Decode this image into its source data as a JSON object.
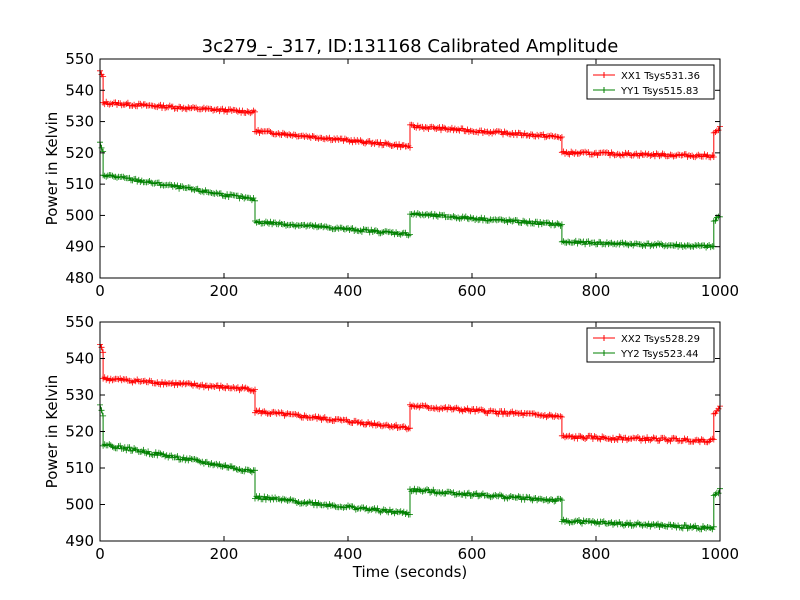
{
  "title": "3c279_-_317, ID:131168 Calibrated Amplitude",
  "colors": {
    "xx": "#ff0000",
    "yy": "#008000",
    "axes": "#000000",
    "background": "#ffffff"
  },
  "chart_data": [
    {
      "type": "line",
      "xlabel": "",
      "ylabel": "Power in Kelvin",
      "xlim": [
        0,
        1000
      ],
      "ylim": [
        480,
        550
      ],
      "xticks": [
        "0",
        "200",
        "400",
        "600",
        "800",
        "1000"
      ],
      "yticks": [
        "480",
        "490",
        "500",
        "510",
        "520",
        "530",
        "540",
        "550"
      ],
      "grid": false,
      "legend_position": "top-right",
      "marker": "+",
      "series": [
        {
          "name": "XX1 Tsys531.36",
          "segments": [
            {
              "x": [
                0,
                5
              ],
              "y": [
                546,
                544
              ]
            },
            {
              "x": [
                5,
                250
              ],
              "y": [
                536,
                533
              ]
            },
            {
              "x": [
                250,
                500
              ],
              "y": [
                527,
                522
              ]
            },
            {
              "x": [
                500,
                745
              ],
              "y": [
                528.5,
                525
              ]
            },
            {
              "x": [
                745,
                990
              ],
              "y": [
                520,
                519
              ]
            },
            {
              "x": [
                990,
                1000
              ],
              "y": [
                526,
                528
              ]
            }
          ]
        },
        {
          "name": "YY1 Tsys515.83",
          "segments": [
            {
              "x": [
                0,
                5
              ],
              "y": [
                523,
                520
              ]
            },
            {
              "x": [
                5,
                250
              ],
              "y": [
                513,
                505
              ]
            },
            {
              "x": [
                250,
                500
              ],
              "y": [
                498,
                494
              ]
            },
            {
              "x": [
                500,
                745
              ],
              "y": [
                500.5,
                497
              ]
            },
            {
              "x": [
                745,
                990
              ],
              "y": [
                491.5,
                490
              ]
            },
            {
              "x": [
                990,
                1000
              ],
              "y": [
                498,
                500
              ]
            }
          ]
        }
      ]
    },
    {
      "type": "line",
      "xlabel": "Time (seconds)",
      "ylabel": "Power in Kelvin",
      "xlim": [
        0,
        1000
      ],
      "ylim": [
        490,
        550
      ],
      "xticks": [
        "0",
        "200",
        "400",
        "600",
        "800",
        "1000"
      ],
      "yticks": [
        "490",
        "500",
        "510",
        "520",
        "530",
        "540",
        "550"
      ],
      "grid": false,
      "legend_position": "top-right",
      "marker": "+",
      "series": [
        {
          "name": "XX2 Tsys528.29",
          "segments": [
            {
              "x": [
                0,
                5
              ],
              "y": [
                544,
                542
              ]
            },
            {
              "x": [
                5,
                250
              ],
              "y": [
                534.5,
                531.5
              ]
            },
            {
              "x": [
                250,
                500
              ],
              "y": [
                525.5,
                521
              ]
            },
            {
              "x": [
                500,
                745
              ],
              "y": [
                527,
                524
              ]
            },
            {
              "x": [
                745,
                990
              ],
              "y": [
                518.5,
                517.5
              ]
            },
            {
              "x": [
                990,
                1000
              ],
              "y": [
                525,
                527
              ]
            }
          ]
        },
        {
          "name": "YY2 Tsys523.44",
          "segments": [
            {
              "x": [
                0,
                5
              ],
              "y": [
                527,
                524
              ]
            },
            {
              "x": [
                5,
                250
              ],
              "y": [
                516.5,
                509
              ]
            },
            {
              "x": [
                250,
                500
              ],
              "y": [
                502,
                497.5
              ]
            },
            {
              "x": [
                500,
                745
              ],
              "y": [
                504,
                501
              ]
            },
            {
              "x": [
                745,
                990
              ],
              "y": [
                495.5,
                493.5
              ]
            },
            {
              "x": [
                990,
                1000
              ],
              "y": [
                502,
                504
              ]
            }
          ]
        }
      ]
    }
  ]
}
